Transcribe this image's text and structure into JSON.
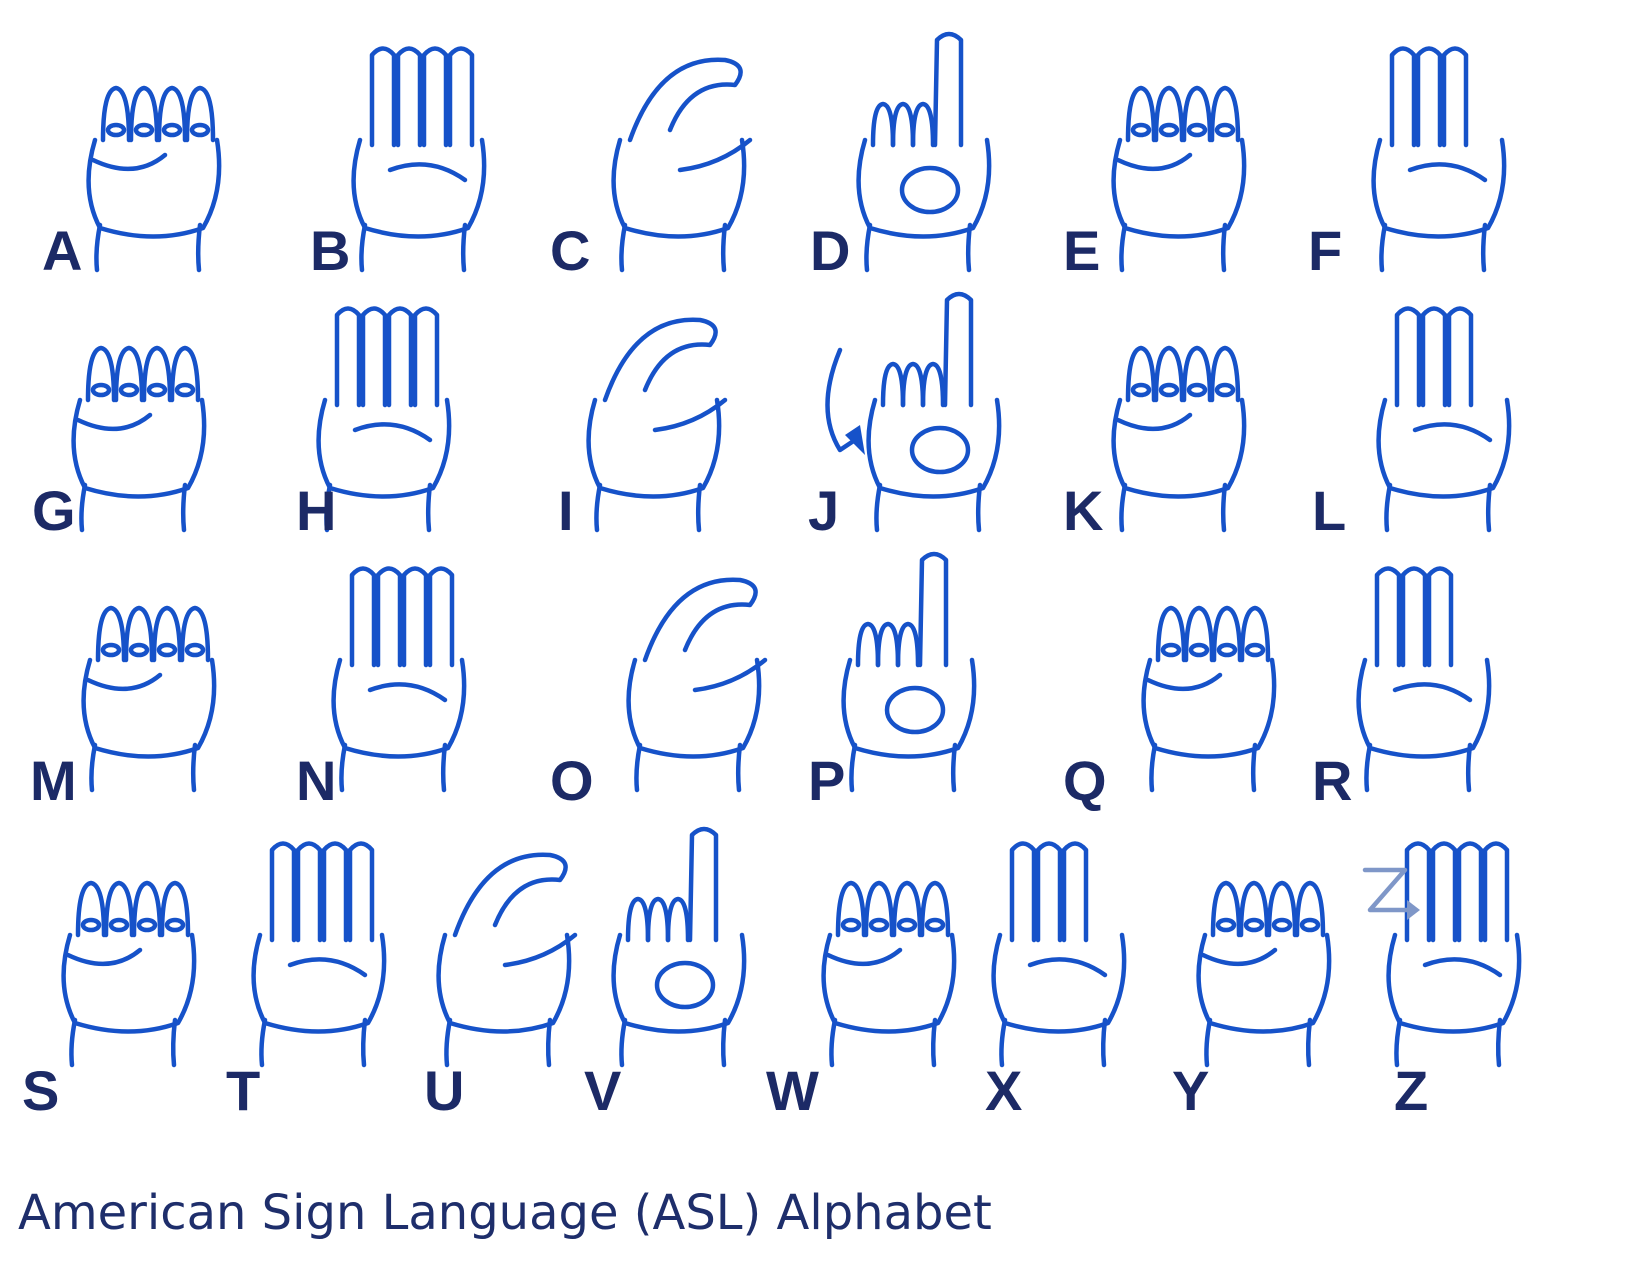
{
  "caption": "American Sign Language (ASL) Alphabet",
  "colors": {
    "hand_outline": "#1652c9",
    "letter": "#1c2a66",
    "caption": "#1e2e6b",
    "arrow_z": "#7f97c8"
  },
  "letters": [
    {
      "letter": "A",
      "icon": "fist-thumb-side-icon"
    },
    {
      "letter": "B",
      "icon": "flat-hand-thumb-across-icon"
    },
    {
      "letter": "C",
      "icon": "curved-c-hand-icon"
    },
    {
      "letter": "D",
      "icon": "index-up-circle-icon"
    },
    {
      "letter": "E",
      "icon": "curled-fingers-icon"
    },
    {
      "letter": "F",
      "icon": "three-fingers-up-circle-icon"
    },
    {
      "letter": "G",
      "icon": "index-point-side-icon"
    },
    {
      "letter": "H",
      "icon": "two-fingers-side-icon"
    },
    {
      "letter": "I",
      "icon": "pinky-up-icon"
    },
    {
      "letter": "J",
      "icon": "pinky-up-motion-arrow-icon"
    },
    {
      "letter": "K",
      "icon": "two-fingers-up-thumb-between-icon"
    },
    {
      "letter": "L",
      "icon": "index-thumb-l-icon"
    },
    {
      "letter": "M",
      "icon": "thumb-under-three-fingers-icon"
    },
    {
      "letter": "N",
      "icon": "thumb-under-two-fingers-icon"
    },
    {
      "letter": "O",
      "icon": "round-o-hand-icon"
    },
    {
      "letter": "P",
      "icon": "downward-k-hand-icon"
    },
    {
      "letter": "Q",
      "icon": "downward-g-hand-icon"
    },
    {
      "letter": "R",
      "icon": "crossed-fingers-icon"
    },
    {
      "letter": "S",
      "icon": "fist-thumb-front-icon"
    },
    {
      "letter": "T",
      "icon": "thumb-between-fingers-icon"
    },
    {
      "letter": "U",
      "icon": "two-fingers-together-icon"
    },
    {
      "letter": "V",
      "icon": "peace-sign-icon"
    },
    {
      "letter": "W",
      "icon": "three-fingers-up-icon"
    },
    {
      "letter": "X",
      "icon": "hooked-index-icon"
    },
    {
      "letter": "Y",
      "icon": "thumb-pinky-out-icon"
    },
    {
      "letter": "Z",
      "icon": "index-draw-z-icon"
    }
  ]
}
